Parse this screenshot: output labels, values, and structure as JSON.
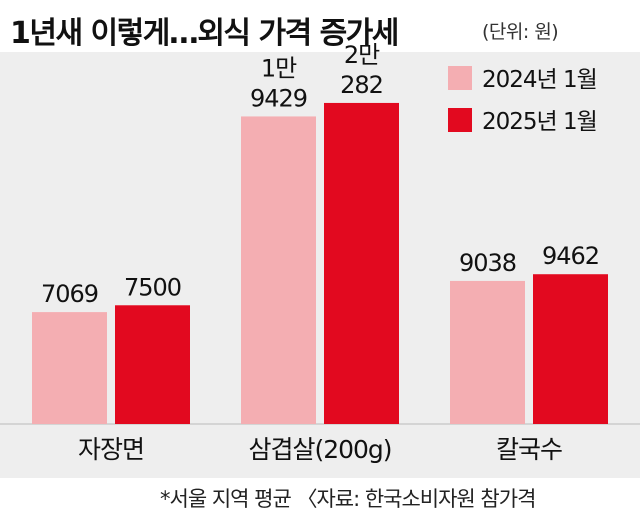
{
  "chart_data": {
    "type": "bar",
    "title": "1년새 이렇게…외식 가격 증가세",
    "unit": "(단위: 원)",
    "categories": [
      "자장면",
      "삼겹살(200g)",
      "칼국수"
    ],
    "series": [
      {
        "name": "2024년 1월",
        "color": "#f4aeb2",
        "values": [
          7069,
          19429,
          9038
        ],
        "labels": [
          [
            "7069"
          ],
          [
            "1만",
            "9429"
          ],
          [
            "9038"
          ]
        ]
      },
      {
        "name": "2025년 1월",
        "color": "#e2091f",
        "values": [
          7500,
          20282,
          9462
        ],
        "labels": [
          [
            "7500"
          ],
          [
            "2만",
            "282"
          ],
          [
            "9462"
          ]
        ]
      }
    ],
    "ylim": [
      0,
      23500
    ],
    "grid": false,
    "legend_position": "top-right",
    "footnote": "*서울 지역 평균 〈자료: 한국소비자원 참가격"
  }
}
